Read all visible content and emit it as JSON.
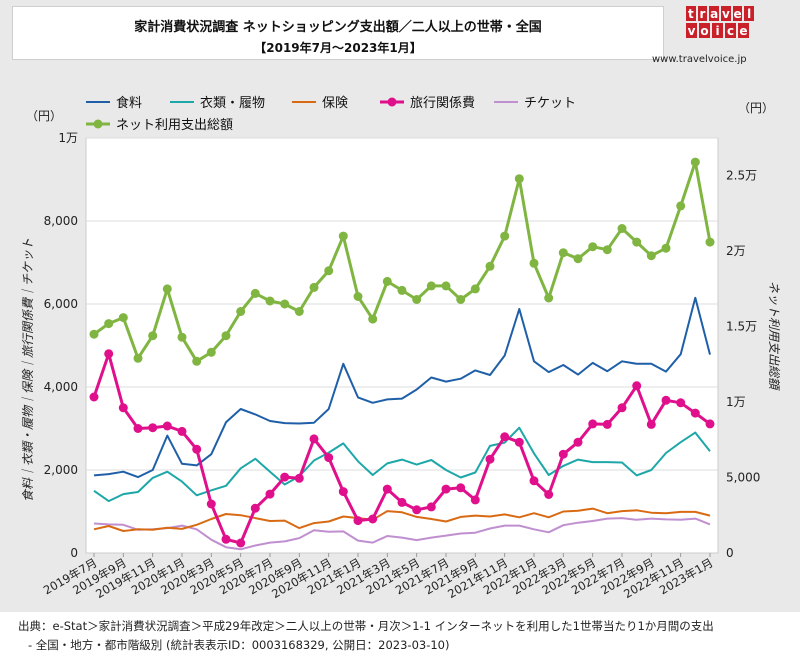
{
  "header": {
    "title_line1": "家計消費状況調査 ネットショッピング支出額／二人以上の世帯・全国",
    "title_line2": "【2019年7月〜2023年1月】"
  },
  "logo": {
    "row1": [
      "t",
      "r",
      "a",
      "v",
      "e",
      "l"
    ],
    "row2": [
      "v",
      "o",
      "i",
      "c",
      "e"
    ],
    "url": "www.travelvoice.jp"
  },
  "footer": {
    "line1": "出典：e-Stat＞家計消費状況調査＞平成29年改定＞二人以上の世帯・月次＞1-1 インターネットを利用した1世帯当たり1か月間の支出",
    "line2": "- 全国・地方・都市階級別 (統計表表示ID：0003168329, 公開日：2023-03-10)"
  },
  "chart_data": {
    "type": "line",
    "left_unit": "（円）",
    "right_unit": "（円）",
    "ylabel": "食料｜衣類・履物｜保険｜旅行関係費｜チケット",
    "y2label": "ネット利用支出総額",
    "ylim": [
      0,
      10000
    ],
    "y2lim": [
      0,
      27500
    ],
    "yticks": [
      {
        "v": 0,
        "label": "0"
      },
      {
        "v": 2000,
        "label": "2,000"
      },
      {
        "v": 4000,
        "label": "4,000"
      },
      {
        "v": 6000,
        "label": "6,000"
      },
      {
        "v": 8000,
        "label": "8,000"
      },
      {
        "v": 10000,
        "label": "1万"
      }
    ],
    "y2ticks": [
      {
        "v": 0,
        "label": "0"
      },
      {
        "v": 5000,
        "label": "5,000"
      },
      {
        "v": 10000,
        "label": "1万"
      },
      {
        "v": 15000,
        "label": "1.5万"
      },
      {
        "v": 20000,
        "label": "2万"
      },
      {
        "v": 25000,
        "label": "2.5万"
      }
    ],
    "x_labels": [
      "2019年7月",
      "2019年9月",
      "2019年11月",
      "2020年1月",
      "2020年3月",
      "2020年5月",
      "2020年7月",
      "2020年9月",
      "2020年11月",
      "2021年1月",
      "2021年3月",
      "2021年5月",
      "2021年7月",
      "2021年9月",
      "2021年11月",
      "2022年1月",
      "2022年3月",
      "2022年5月",
      "2022年7月",
      "2022年9月",
      "2022年11月",
      "2023年1月"
    ],
    "x_count": 43,
    "legend_placement": "top-left",
    "series": [
      {
        "name": "食料",
        "color": "#1f5fa8",
        "axis": "left",
        "marker": false,
        "values": [
          1870,
          1900,
          1960,
          1830,
          2000,
          2830,
          2150,
          2110,
          2380,
          3150,
          3470,
          3340,
          3180,
          3130,
          3120,
          3140,
          3470,
          4560,
          3750,
          3620,
          3700,
          3720,
          3940,
          4230,
          4130,
          4200,
          4400,
          4290,
          4760,
          5880,
          4620,
          4360,
          4530,
          4300,
          4580,
          4380,
          4620,
          4560,
          4560,
          4370,
          4790,
          6150,
          4780
        ]
      },
      {
        "name": "衣類・履物",
        "color": "#1ea7a8",
        "axis": "left",
        "marker": false,
        "values": [
          1500,
          1250,
          1420,
          1470,
          1810,
          1960,
          1720,
          1390,
          1510,
          1620,
          2040,
          2270,
          1960,
          1650,
          1850,
          2230,
          2420,
          2640,
          2210,
          1880,
          2160,
          2250,
          2130,
          2240,
          2000,
          1820,
          1940,
          2580,
          2660,
          3020,
          2400,
          1880,
          2100,
          2250,
          2190,
          2190,
          2180,
          1870,
          2000,
          2410,
          2670,
          2900,
          2450
        ]
      },
      {
        "name": "保険",
        "color": "#d96a14",
        "axis": "left",
        "marker": false,
        "values": [
          570,
          650,
          530,
          570,
          560,
          610,
          580,
          680,
          820,
          940,
          910,
          840,
          770,
          780,
          600,
          720,
          760,
          880,
          840,
          800,
          1010,
          980,
          870,
          820,
          760,
          870,
          900,
          880,
          930,
          860,
          960,
          860,
          1000,
          1020,
          1070,
          960,
          1010,
          1030,
          970,
          960,
          990,
          990,
          900
        ]
      },
      {
        "name": "旅行関係費",
        "color": "#e0108c",
        "axis": "left",
        "marker": true,
        "values": [
          3760,
          4800,
          3500,
          3000,
          3020,
          3060,
          2930,
          2500,
          1180,
          330,
          240,
          1080,
          1420,
          1830,
          1800,
          2750,
          2300,
          1480,
          780,
          820,
          1540,
          1220,
          1040,
          1110,
          1540,
          1570,
          1280,
          2260,
          2800,
          2670,
          1740,
          1410,
          2380,
          2670,
          3110,
          3100,
          3500,
          4030,
          3100,
          3680,
          3620,
          3370,
          3110
        ]
      },
      {
        "name": "チケット",
        "color": "#c08fd0",
        "axis": "left",
        "marker": false,
        "values": [
          710,
          690,
          680,
          560,
          570,
          600,
          660,
          570,
          320,
          140,
          90,
          180,
          250,
          280,
          360,
          550,
          510,
          520,
          300,
          250,
          410,
          370,
          310,
          370,
          420,
          470,
          490,
          590,
          660,
          660,
          570,
          500,
          670,
          730,
          770,
          830,
          840,
          800,
          830,
          810,
          800,
          830,
          690
        ]
      },
      {
        "name": "ネット利用支出総額",
        "color": "#7fb540",
        "axis": "right",
        "marker": true,
        "values": [
          14500,
          15200,
          15600,
          12900,
          14400,
          17500,
          14300,
          12700,
          13300,
          14400,
          16000,
          17200,
          16700,
          16500,
          16000,
          17600,
          18700,
          21000,
          17000,
          15500,
          18000,
          17400,
          16800,
          17700,
          17700,
          16800,
          17500,
          19000,
          21000,
          24800,
          19200,
          16900,
          19900,
          19500,
          20300,
          20100,
          21500,
          20600,
          19700,
          20200,
          23000,
          25900,
          20600
        ]
      }
    ]
  }
}
